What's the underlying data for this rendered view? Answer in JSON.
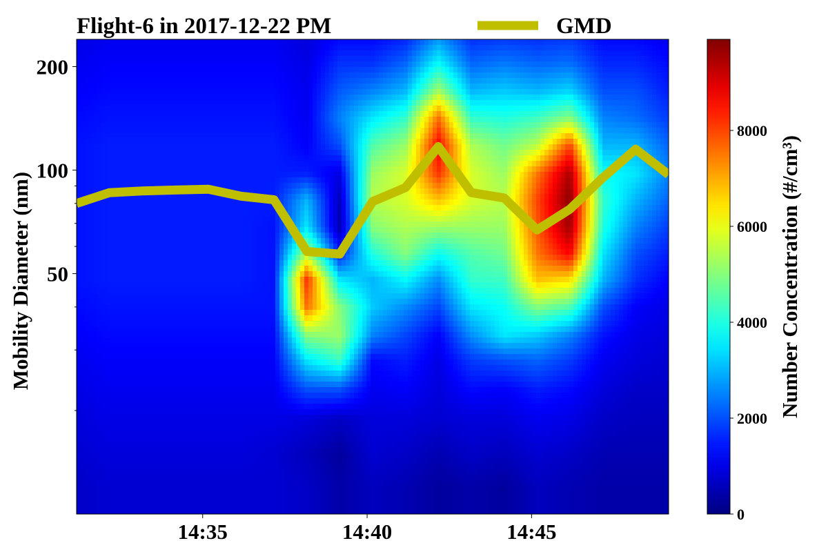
{
  "chart_data": {
    "type": "heatmap",
    "title": "Flight-6 in 2017-12-22 PM",
    "xlabel": "",
    "ylabel": "Mobility Diameter (nm)",
    "y_scale": "log",
    "xlim": [
      "14:31:10",
      "14:49:10"
    ],
    "ylim": [
      10,
      240
    ],
    "x_ticks": [
      "14:35",
      "14:40",
      "14:45"
    ],
    "y_ticks": [
      {
        "value": 200,
        "label": "200"
      },
      {
        "value": 100,
        "label": "100"
      },
      {
        "value": 50,
        "label": "50"
      }
    ],
    "y_minor_ticks": [
      40,
      30,
      20,
      90,
      80,
      70,
      60
    ],
    "legend": {
      "position": "top-center",
      "entries": [
        {
          "name": "GMD",
          "color": "#bfbf00"
        }
      ]
    },
    "colorbar": {
      "label": "Number Concentration (#/cm³)",
      "min": 0,
      "max": 9900,
      "ticks": [
        0,
        2000,
        4000,
        6000,
        8000
      ],
      "colormap": "jet"
    },
    "heatmap": {
      "time_axis": [
        "14:31:10",
        "14:32:10",
        "14:33:10",
        "14:34:10",
        "14:35:10",
        "14:36:10",
        "14:37:10",
        "14:38:10",
        "14:39:10",
        "14:40:10",
        "14:41:10",
        "14:42:10",
        "14:43:10",
        "14:44:10",
        "14:45:10",
        "14:46:10",
        "14:47:10",
        "14:48:10",
        "14:49:10"
      ],
      "diameter_axis": [
        12,
        15,
        19,
        23,
        28,
        33,
        40,
        48,
        57,
        68,
        82,
        98,
        118,
        142,
        170,
        205,
        240
      ],
      "values": [
        [
          700,
          800,
          800,
          800,
          800,
          800,
          800,
          700,
          400,
          600,
          500,
          300,
          400,
          300,
          600,
          500,
          400,
          400,
          400
        ],
        [
          800,
          900,
          900,
          900,
          900,
          900,
          800,
          600,
          300,
          800,
          700,
          500,
          700,
          600,
          800,
          700,
          500,
          500,
          500
        ],
        [
          900,
          1000,
          1000,
          1000,
          1000,
          1000,
          1000,
          900,
          700,
          900,
          900,
          800,
          900,
          900,
          1100,
          1000,
          700,
          600,
          600
        ],
        [
          1000,
          1100,
          1100,
          1100,
          1100,
          1100,
          1100,
          2000,
          2000,
          1100,
          1200,
          900,
          1300,
          1200,
          1500,
          1300,
          900,
          700,
          700
        ],
        [
          1100,
          1200,
          1200,
          1200,
          1200,
          1200,
          1200,
          3500,
          4300,
          1300,
          1500,
          1000,
          1800,
          2000,
          2200,
          1800,
          1100,
          900,
          800
        ],
        [
          1200,
          1300,
          1300,
          1300,
          1300,
          1300,
          1300,
          5000,
          5200,
          2500,
          1900,
          1200,
          2600,
          3500,
          3200,
          2500,
          1400,
          1000,
          900
        ],
        [
          1300,
          1400,
          1400,
          1400,
          1400,
          1400,
          1400,
          7600,
          5000,
          3200,
          2600,
          1900,
          3500,
          3800,
          5000,
          4500,
          2000,
          1200,
          1000
        ],
        [
          1400,
          1500,
          1500,
          1500,
          1500,
          1500,
          1400,
          8200,
          3500,
          3000,
          3700,
          2600,
          4200,
          4300,
          6800,
          6500,
          3000,
          1700,
          1200
        ],
        [
          1400,
          1500,
          1500,
          1500,
          1500,
          1500,
          1400,
          5500,
          1500,
          4000,
          5000,
          3800,
          4500,
          4800,
          7500,
          8700,
          3500,
          2000,
          1500
        ],
        [
          1400,
          1500,
          1500,
          1500,
          1500,
          1500,
          1400,
          3500,
          500,
          5000,
          5400,
          5200,
          5200,
          5200,
          7800,
          9600,
          4000,
          2500,
          1800
        ],
        [
          1400,
          1500,
          1500,
          1500,
          1500,
          1500,
          1500,
          3000,
          600,
          5500,
          5800,
          6800,
          5800,
          5500,
          8000,
          9800,
          4200,
          3000,
          2200
        ],
        [
          1400,
          1500,
          1500,
          1500,
          1500,
          1500,
          1500,
          1500,
          1000,
          5200,
          5800,
          8200,
          5800,
          5200,
          7500,
          9500,
          3800,
          3500,
          2500
        ],
        [
          1400,
          1500,
          1500,
          1500,
          1500,
          1500,
          1500,
          1200,
          2000,
          4500,
          5200,
          8700,
          5400,
          4800,
          5500,
          8000,
          3000,
          3000,
          2200
        ],
        [
          1300,
          1400,
          1400,
          1400,
          1400,
          1400,
          1400,
          1100,
          2500,
          3500,
          4200,
          7600,
          4200,
          4000,
          4300,
          5000,
          2500,
          2300,
          1800
        ],
        [
          1200,
          1300,
          1300,
          1300,
          1300,
          1300,
          1300,
          1100,
          2100,
          2500,
          3000,
          5300,
          3000,
          3200,
          3000,
          3300,
          2000,
          2000,
          1500
        ],
        [
          1100,
          1200,
          1200,
          1200,
          1200,
          1200,
          1200,
          1000,
          1700,
          1700,
          2200,
          3700,
          2200,
          2400,
          2200,
          2300,
          1600,
          1600,
          1300
        ],
        [
          1000,
          1100,
          1100,
          1100,
          1100,
          1100,
          1100,
          900,
          1300,
          1300,
          1600,
          2700,
          1700,
          1800,
          1700,
          1800,
          1300,
          1300,
          1100
        ]
      ]
    },
    "series": [
      {
        "name": "GMD",
        "color": "#bfbf00",
        "x": [
          "14:31:10",
          "14:32:10",
          "14:33:10",
          "14:34:10",
          "14:35:10",
          "14:36:10",
          "14:37:10",
          "14:38:10",
          "14:39:10",
          "14:40:10",
          "14:41:10",
          "14:42:10",
          "14:43:10",
          "14:44:10",
          "14:45:10",
          "14:46:10",
          "14:47:10",
          "14:48:10",
          "14:49:10"
        ],
        "y": [
          80,
          86,
          87,
          87.5,
          88,
          84,
          82,
          58,
          57,
          81,
          89,
          117,
          86,
          83,
          67,
          77,
          95,
          115,
          97
        ]
      }
    ]
  }
}
